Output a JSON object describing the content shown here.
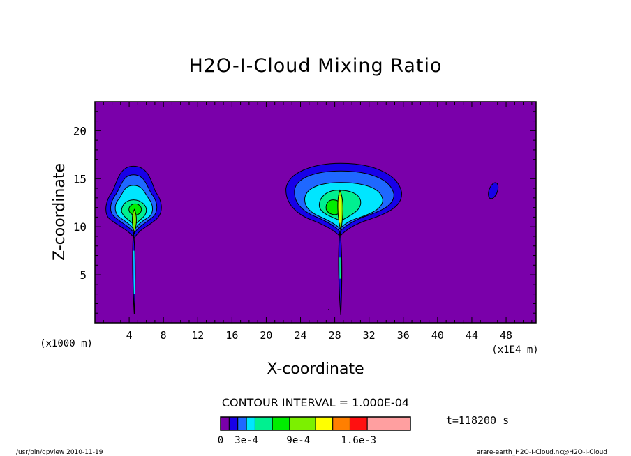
{
  "chart_data": {
    "type": "contour",
    "title": "H2O-I-Cloud Mixing Ratio",
    "xlabel": "X-coordinate",
    "ylabel": "Z-coordinate",
    "x_unit_left": "(x1000 m)",
    "x_unit_right": "(x1E4 m)",
    "x_ticks": [
      "4",
      "8",
      "12",
      "16",
      "20",
      "24",
      "28",
      "32",
      "36",
      "40",
      "44",
      "48"
    ],
    "y_ticks": [
      "5",
      "10",
      "15",
      "20"
    ],
    "xlim": [
      0,
      51.5
    ],
    "ylim": [
      0,
      23
    ],
    "contour_interval_text": "CONTOUR INTERVAL = 1.000E-04",
    "time_text": "t=118200 s",
    "colorbar_labels": [
      {
        "text": "0",
        "at": 0
      },
      {
        "text": "3e-4",
        "at": 3
      },
      {
        "text": "9e-4",
        "at": 9
      },
      {
        "text": "1.6e-3",
        "at": 16
      }
    ],
    "colorbar_levels": [
      {
        "upper": 1,
        "color": "#7a00aa"
      },
      {
        "upper": 2,
        "color": "#1800e8"
      },
      {
        "upper": 3,
        "color": "#1f68ff"
      },
      {
        "upper": 4,
        "color": "#00e6ff"
      },
      {
        "upper": 6,
        "color": "#00f090"
      },
      {
        "upper": 8,
        "color": "#00ee00"
      },
      {
        "upper": 11,
        "color": "#7cf000"
      },
      {
        "upper": 13,
        "color": "#ffff00"
      },
      {
        "upper": 15,
        "color": "#ff7f00"
      },
      {
        "upper": 17,
        "color": "#ff1010"
      },
      {
        "upper": 22,
        "color": "#ff9fa0"
      }
    ],
    "background_color": "#7a00aa",
    "cloud_features": [
      {
        "name": "left cloud",
        "x_center": 4.5,
        "z_range": [
          8.8,
          16.3
        ],
        "x_range": [
          1.2,
          8.1
        ],
        "peak_level": "8e-4"
      },
      {
        "name": "center cloud",
        "x_center": 28.5,
        "z_range": [
          9.0,
          16.6
        ],
        "x_range": [
          22.2,
          35.8
        ],
        "peak_level": "1e-3"
      },
      {
        "name": "small patch",
        "x_center": 46.5,
        "z_range": [
          12.9,
          14.6
        ],
        "level": "1e-4"
      }
    ]
  },
  "footer": {
    "left": "/usr/bin/gpview  2010-11-19",
    "right": "arare-earth_H2O-I-Cloud.nc@H2O-I-Cloud"
  }
}
